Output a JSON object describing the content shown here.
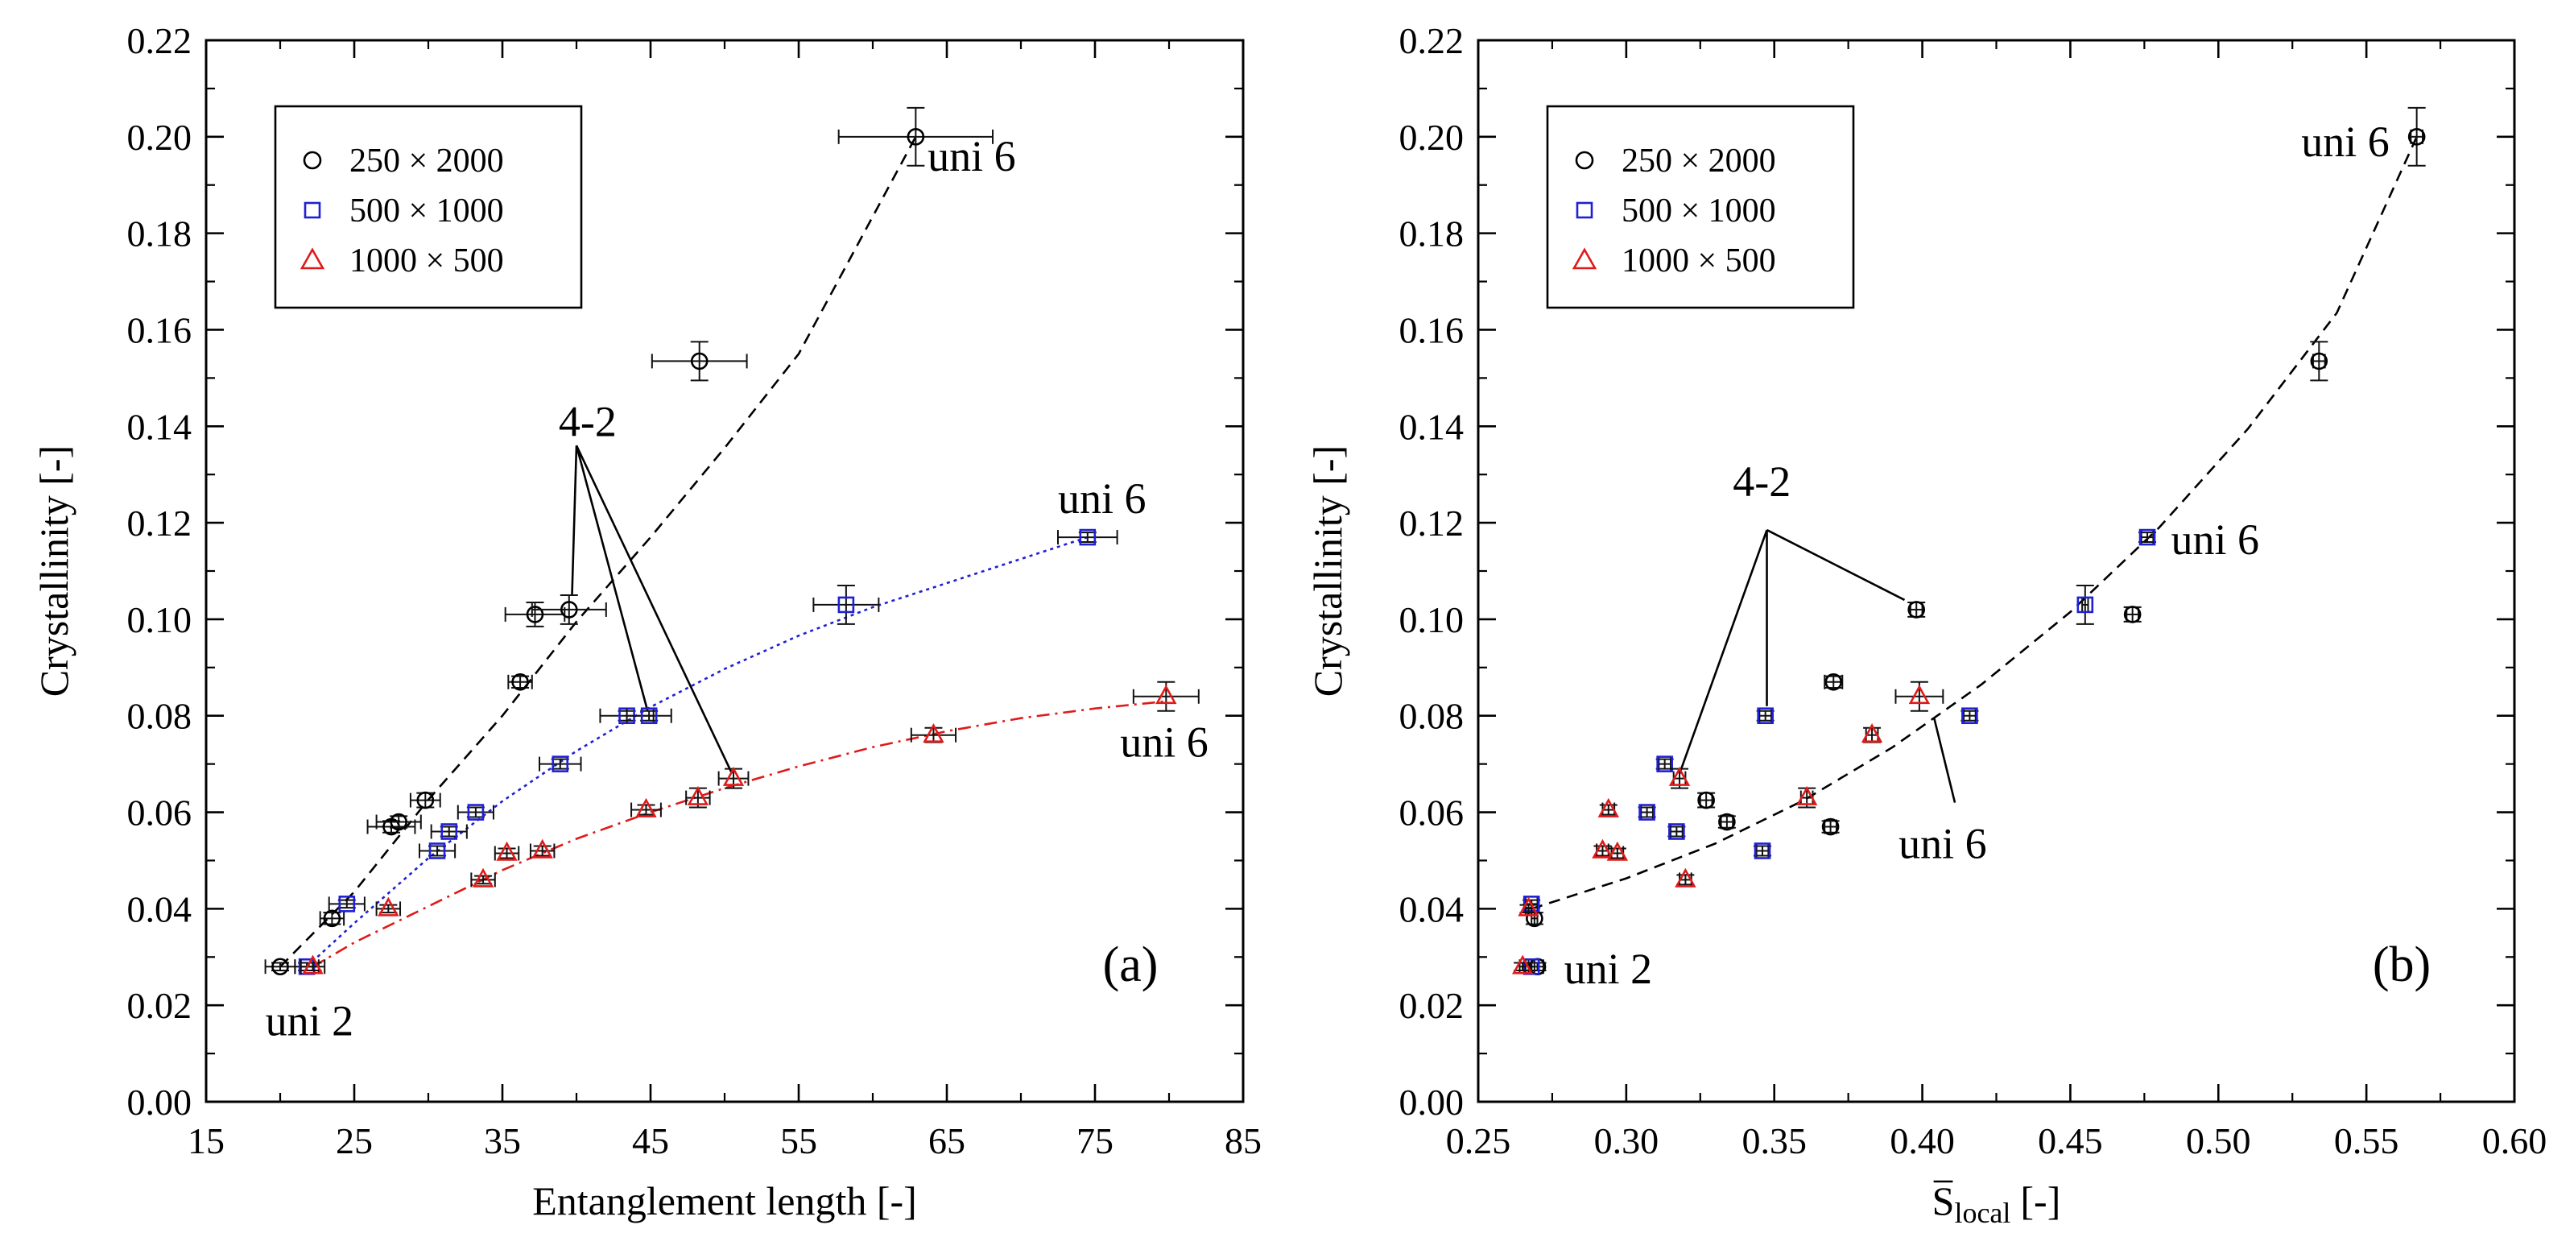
{
  "chart_data": [
    {
      "type": "scatter",
      "panel_label": "(a)",
      "xlabel": "Entanglement length [-]",
      "ylabel": "Crystallinity [-]",
      "xlim": [
        15,
        85
      ],
      "ylim": [
        0,
        0.22
      ],
      "xticks": [
        15,
        25,
        35,
        45,
        55,
        65,
        75,
        85
      ],
      "xtick_labels": [
        "15",
        "25",
        "35",
        "45",
        "55",
        "65",
        "75",
        "85"
      ],
      "yticks": [
        0,
        0.02,
        0.04,
        0.06,
        0.08,
        0.1,
        0.12,
        0.14,
        0.16,
        0.18,
        0.2,
        0.22
      ],
      "ytick_labels": [
        "0.00",
        "0.02",
        "0.04",
        "0.06",
        "0.08",
        "0.10",
        "0.12",
        "0.14",
        "0.16",
        "0.18",
        "0.20",
        "0.22"
      ],
      "legend": {
        "position": "top-left",
        "entries": [
          "250 × 2000",
          "500 × 1000",
          "1000 × 500"
        ]
      },
      "series": [
        {
          "name": "250 × 2000",
          "marker": "circle",
          "color": "#000000",
          "x": [
            20.0,
            23.5,
            27.5,
            28.0,
            29.8,
            36.2,
            37.2,
            39.5,
            48.3,
            62.9
          ],
          "y": [
            0.028,
            0.038,
            0.057,
            0.058,
            0.0625,
            0.087,
            0.101,
            0.102,
            0.1535,
            0.2
          ],
          "xerr": [
            1.0,
            0.8,
            1.6,
            1.5,
            1.0,
            0.8,
            2.0,
            2.5,
            3.2,
            5.2
          ],
          "yerr": [
            0.0008,
            0.0012,
            0.0012,
            0.0012,
            0.0015,
            0.0012,
            0.0025,
            0.003,
            0.004,
            0.006
          ]
        },
        {
          "name": "500 × 1000",
          "marker": "square",
          "color": "#1f1fd6",
          "x": [
            21.8,
            24.5,
            30.6,
            31.4,
            33.2,
            38.9,
            43.4,
            44.9,
            58.2,
            74.5
          ],
          "y": [
            0.028,
            0.041,
            0.052,
            0.056,
            0.06,
            0.07,
            0.08,
            0.08,
            0.103,
            0.117
          ],
          "xerr": [
            0.8,
            1.2,
            1.2,
            1.2,
            1.2,
            1.4,
            1.8,
            1.5,
            2.2,
            2.0
          ],
          "yerr": [
            0.0008,
            0.0008,
            0.001,
            0.001,
            0.001,
            0.001,
            0.001,
            0.001,
            0.004,
            0.001
          ]
        },
        {
          "name": "1000 × 500",
          "marker": "triangle",
          "color": "#e01a1a",
          "x": [
            22.2,
            27.3,
            33.7,
            35.3,
            37.7,
            44.7,
            48.2,
            50.6,
            64.1,
            79.8
          ],
          "y": [
            0.028,
            0.04,
            0.046,
            0.0515,
            0.052,
            0.0605,
            0.063,
            0.067,
            0.076,
            0.084
          ],
          "xerr": [
            0.8,
            0.8,
            0.8,
            0.8,
            0.8,
            1.0,
            0.8,
            1.0,
            1.5,
            2.2
          ],
          "yerr": [
            0.0008,
            0.0008,
            0.0008,
            0.001,
            0.001,
            0.001,
            0.002,
            0.002,
            0.0015,
            0.003
          ]
        }
      ],
      "fit_lines": [
        {
          "series": "250 × 2000",
          "style": "dashed",
          "color": "#000000",
          "x": [
            20.0,
            25,
            30,
            35,
            40,
            45,
            50,
            55,
            62.9
          ],
          "y": [
            0.028,
            0.0435,
            0.0626,
            0.08,
            0.0995,
            0.117,
            0.1355,
            0.155,
            0.2
          ]
        },
        {
          "series": "500 × 1000",
          "style": "dotted",
          "color": "#1f1fd6",
          "x": [
            21.8,
            25,
            30,
            35,
            40,
            45,
            50,
            55,
            60,
            65,
            70,
            74.5
          ],
          "y": [
            0.028,
            0.037,
            0.0505,
            0.0623,
            0.0727,
            0.0818,
            0.0897,
            0.0966,
            0.1025,
            0.1075,
            0.1125,
            0.117
          ]
        },
        {
          "series": "1000 × 500",
          "style": "dash-dot",
          "color": "#e01a1a",
          "x": [
            22.2,
            25,
            30,
            35,
            40,
            45,
            50,
            55,
            60,
            65,
            70,
            75,
            79.8
          ],
          "y": [
            0.028,
            0.033,
            0.0405,
            0.048,
            0.0545,
            0.06,
            0.065,
            0.0695,
            0.0735,
            0.0768,
            0.0795,
            0.0815,
            0.083
          ]
        }
      ],
      "annotations": [
        {
          "text": "uni 6",
          "at": [
            63.7,
            0.193
          ]
        },
        {
          "text": "uni 6",
          "at": [
            72.5,
            0.122
          ]
        },
        {
          "text": "uni 6",
          "at": [
            76.7,
            0.0715
          ]
        },
        {
          "text": "uni 2",
          "at": [
            19.0,
            0.0138
          ]
        },
        {
          "text": "4-2",
          "at": [
            38.8,
            0.138
          ]
        }
      ],
      "pointer_lines": {
        "origin": [
          40.0,
          0.136
        ],
        "targets": [
          [
            39.7,
            0.105
          ],
          [
            44.8,
            0.081
          ],
          [
            50.5,
            0.068
          ]
        ]
      }
    },
    {
      "type": "scatter",
      "panel_label": "(b)",
      "xlabel": "S",
      "xlabel_subscript": "local",
      "xlabel_suffix": "[-]",
      "ylabel": "Crystallinity [-]",
      "xlim": [
        0.25,
        0.6
      ],
      "ylim": [
        0,
        0.22
      ],
      "xticks": [
        0.25,
        0.3,
        0.35,
        0.4,
        0.45,
        0.5,
        0.55,
        0.6
      ],
      "xtick_labels": [
        "0.25",
        "0.30",
        "0.35",
        "0.40",
        "0.45",
        "0.50",
        "0.55",
        "0.60"
      ],
      "yticks": [
        0,
        0.02,
        0.04,
        0.06,
        0.08,
        0.1,
        0.12,
        0.14,
        0.16,
        0.18,
        0.2,
        0.22
      ],
      "ytick_labels": [
        "0.00",
        "0.02",
        "0.04",
        "0.06",
        "0.08",
        "0.10",
        "0.12",
        "0.14",
        "0.16",
        "0.18",
        "0.20",
        "0.22"
      ],
      "legend": {
        "position": "top-left",
        "entries": [
          "250 × 2000",
          "500 × 1000",
          "1000 × 500"
        ]
      },
      "series": [
        {
          "name": "250 × 2000",
          "marker": "circle",
          "color": "#000000",
          "x": [
            0.27,
            0.269,
            0.327,
            0.334,
            0.369,
            0.37,
            0.398,
            0.471,
            0.534,
            0.567
          ],
          "y": [
            0.028,
            0.038,
            0.0625,
            0.058,
            0.057,
            0.087,
            0.102,
            0.101,
            0.1535,
            0.2
          ],
          "xerr": [
            0.002,
            0.001,
            0.002,
            0.002,
            0.002,
            0.003,
            0.002,
            0.002,
            0.002,
            0.002
          ],
          "yerr": [
            0.0008,
            0.0012,
            0.0015,
            0.0012,
            0.0012,
            0.0012,
            0.0015,
            0.0015,
            0.004,
            0.006
          ]
        },
        {
          "name": "500 × 1000",
          "marker": "square",
          "color": "#1f1fd6",
          "x": [
            0.268,
            0.268,
            0.307,
            0.313,
            0.317,
            0.346,
            0.347,
            0.416,
            0.455,
            0.476
          ],
          "y": [
            0.028,
            0.041,
            0.06,
            0.07,
            0.056,
            0.052,
            0.08,
            0.08,
            0.103,
            0.117
          ],
          "xerr": [
            0.001,
            0.002,
            0.002,
            0.002,
            0.002,
            0.002,
            0.002,
            0.002,
            0.001,
            0.002
          ],
          "yerr": [
            0.0008,
            0.0008,
            0.001,
            0.001,
            0.001,
            0.001,
            0.001,
            0.001,
            0.004,
            0.001
          ]
        },
        {
          "name": "1000 × 500",
          "marker": "triangle",
          "color": "#e01a1a",
          "x": [
            0.265,
            0.267,
            0.292,
            0.294,
            0.297,
            0.318,
            0.32,
            0.361,
            0.383,
            0.399
          ],
          "y": [
            0.028,
            0.04,
            0.052,
            0.0605,
            0.0515,
            0.067,
            0.046,
            0.063,
            0.076,
            0.084
          ],
          "xerr": [
            0.001,
            0.001,
            0.002,
            0.002,
            0.002,
            0.002,
            0.002,
            0.002,
            0.002,
            0.008
          ],
          "yerr": [
            0.0008,
            0.0008,
            0.001,
            0.001,
            0.001,
            0.002,
            0.001,
            0.002,
            0.0015,
            0.003
          ]
        }
      ],
      "fit_lines": [
        {
          "series": "all",
          "style": "dashed",
          "color": "#000000",
          "x": [
            0.268,
            0.3,
            0.33,
            0.36,
            0.39,
            0.42,
            0.45,
            0.48,
            0.51,
            0.54,
            0.567
          ],
          "y": [
            0.04,
            0.0463,
            0.0535,
            0.0625,
            0.0735,
            0.0865,
            0.1015,
            0.119,
            0.1395,
            0.1635,
            0.2
          ]
        }
      ],
      "annotations": [
        {
          "text": "uni 6",
          "at": [
            0.528,
            0.196
          ]
        },
        {
          "text": "uni 6",
          "at": [
            0.484,
            0.1135
          ]
        },
        {
          "text": "uni 6",
          "at": [
            0.392,
            0.0505
          ]
        },
        {
          "text": "uni 2",
          "at": [
            0.279,
            0.0245
          ]
        },
        {
          "text": "4-2",
          "at": [
            0.336,
            0.1255
          ]
        }
      ],
      "pointer_lines": {
        "origin": [
          0.3475,
          0.1185
        ],
        "targets": [
          [
            0.318,
            0.068
          ],
          [
            0.3475,
            0.082
          ],
          [
            0.394,
            0.104
          ]
        ]
      },
      "extra_pointers": [
        {
          "from": [
            0.404,
            0.0795
          ],
          "to": [
            0.411,
            0.062
          ]
        }
      ]
    }
  ]
}
